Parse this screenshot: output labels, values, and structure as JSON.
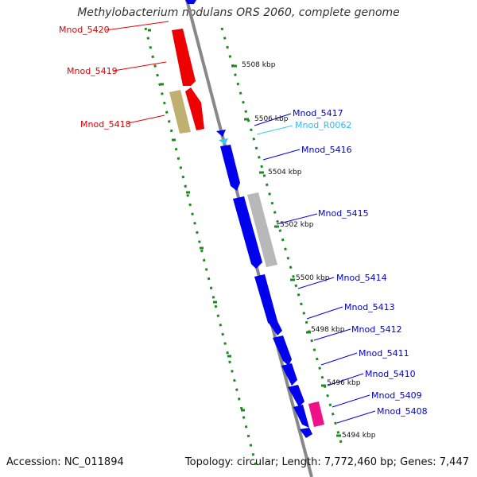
{
  "title": "Methylobacterium nodulans ORS 2060, complete genome",
  "footer": {
    "accession": "Accession: NC_011894",
    "summary": "Topology: circular; Length: 7,772,460 bp; Genes: 7,447"
  },
  "colors": {
    "forward_gene": "#ee0000",
    "reverse_gene": "#0000ee",
    "rna": "#33ccee",
    "pseudo": "#c0b070",
    "repeat": "#b8b8b8",
    "misc": "#ee1188",
    "backbone": "#888888",
    "ticks": "#228822"
  },
  "scale_labels": [
    "5508 kbp",
    "5506 kbp",
    "5504 kbp",
    "5502 kbp",
    "5500 kbp",
    "5498 kbp",
    "5496 kbp",
    "5494 kbp"
  ],
  "gene_labels_left": [
    "Mnod_5420",
    "Mnod_5419",
    "Mnod_5418"
  ],
  "gene_labels_right": [
    "Mnod_5417",
    "Mnod_R0062",
    "Mnod_5416",
    "Mnod_5415",
    "Mnod_5414",
    "Mnod_5413",
    "Mnod_5412",
    "Mnod_5411",
    "Mnod_5410",
    "Mnod_5409",
    "Mnod_5408"
  ]
}
